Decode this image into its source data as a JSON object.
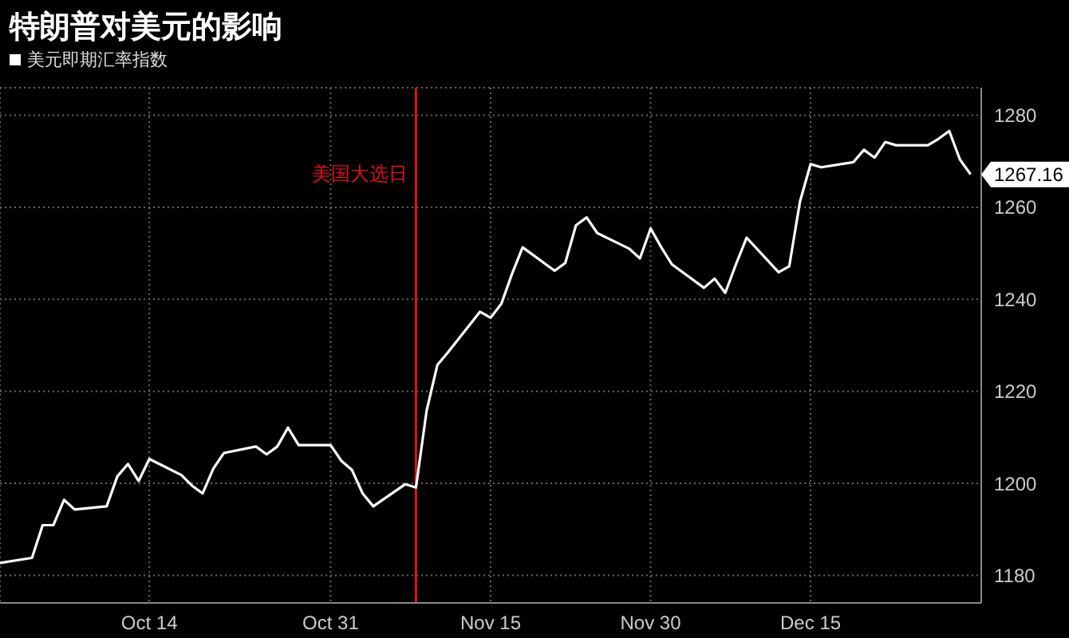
{
  "chart_data": {
    "type": "line",
    "title": "特朗普对美元的影响",
    "x": [
      "--09-30",
      "--10-03",
      "--10-04",
      "--10-05",
      "--10-06",
      "--10-07",
      "--10-10",
      "--10-11",
      "--10-12",
      "--10-13",
      "--10-14",
      "--10-17",
      "--10-18",
      "--10-19",
      "--10-20",
      "--10-21",
      "--10-24",
      "--10-25",
      "--10-26",
      "--10-27",
      "--10-28",
      "--10-31",
      "--11-01",
      "--11-02",
      "--11-03",
      "--11-04",
      "--11-07",
      "--11-08",
      "--11-09",
      "--11-10",
      "--11-11",
      "--11-14",
      "--11-15",
      "--11-16",
      "--11-17",
      "--11-18",
      "--11-21",
      "--11-22",
      "--11-23",
      "--11-24",
      "--11-25",
      "--11-28",
      "--11-29",
      "--11-30",
      "--12-01",
      "--12-02",
      "--12-05",
      "--12-06",
      "--12-07",
      "--12-08",
      "--12-09",
      "--12-12",
      "--12-13",
      "--12-14",
      "--12-15",
      "--12-16",
      "--12-19",
      "--12-20",
      "--12-21",
      "--12-22",
      "--12-23",
      "--12-26",
      "--12-27",
      "--12-28",
      "--12-29",
      "--12-30"
    ],
    "series": [
      {
        "name": "美元即期汇率指数",
        "color": "#ffffff",
        "values": [
          1182.7,
          1183.8,
          1190.9,
          1190.9,
          1196.4,
          1194.3,
          1195,
          1201.5,
          1204.2,
          1200.5,
          1205.3,
          1201.8,
          1199.5,
          1197.8,
          1203.2,
          1206.6,
          1208,
          1206.3,
          1208,
          1212.1,
          1208.3,
          1208.3,
          1204.9,
          1202.9,
          1197.8,
          1195,
          1199.8,
          1199.1,
          1215.8,
          1225.7,
          1228.5,
          1237.3,
          1236,
          1239,
          1245.5,
          1251.3,
          1246.2,
          1247.9,
          1256.1,
          1257.8,
          1254.4,
          1251,
          1248.9,
          1255.4,
          1251.3,
          1247.6,
          1242.5,
          1244.5,
          1241.4,
          1247.6,
          1253.4,
          1245.9,
          1247.2,
          1261.2,
          1269.4,
          1268.7,
          1269.8,
          1272.5,
          1270.8,
          1274.2,
          1273.5,
          1273.5,
          1274.9,
          1276.6,
          1270.4,
          1267.16
        ],
        "value_labels": [
          null,
          null,
          null,
          null,
          null,
          null,
          null,
          null,
          null,
          null,
          null,
          null,
          null,
          null,
          null,
          null,
          null,
          null,
          null,
          null,
          null,
          null,
          null,
          null,
          null,
          null,
          null,
          null,
          null,
          null,
          null,
          null,
          null,
          null,
          null,
          null,
          null,
          null,
          null,
          null,
          null,
          null,
          null,
          null,
          null,
          null,
          null,
          null,
          null,
          null,
          null,
          null,
          null,
          null,
          null,
          null,
          null,
          null,
          null,
          null,
          null,
          null,
          null,
          null,
          null,
          "1267.16"
        ]
      }
    ],
    "xlim": [
      "--09-30",
      "--12-31"
    ],
    "xticks": [
      {
        "value": "--10-14",
        "label": "Oct 14"
      },
      {
        "value": "--10-31",
        "label": "Oct 31"
      },
      {
        "value": "--11-15",
        "label": "Nov 15"
      },
      {
        "value": "--11-30",
        "label": "Nov 30"
      },
      {
        "value": "--12-15",
        "label": "Dec 15"
      }
    ],
    "ylim": [
      1174,
      1286
    ],
    "yticks": [
      1180,
      1200,
      1220,
      1240,
      1260,
      1280
    ],
    "ref_lines": [
      {
        "axis": "x",
        "value": "--11-08",
        "label": "美国大选日",
        "color": "#e0101e"
      }
    ],
    "grid": true,
    "legend": "top left",
    "marker": "none",
    "line_style": "solid"
  }
}
